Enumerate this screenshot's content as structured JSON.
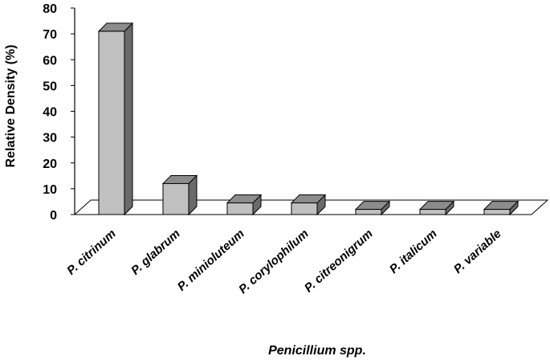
{
  "chart_data": {
    "type": "bar",
    "categories": [
      "P. citrinum",
      "P. glabrum",
      "P. minioluteum",
      "P. corylophilum",
      "P. citreonigrum",
      "P. italicum",
      "P. variable"
    ],
    "values": [
      71,
      12,
      4.5,
      4.5,
      2,
      2,
      2
    ],
    "xlabel": "Penicillium spp.",
    "ylabel": "Relative Density (%)",
    "ylim": [
      0,
      80
    ],
    "yticks": [
      0,
      10,
      20,
      30,
      40,
      50,
      60,
      70,
      80
    ],
    "grid": false,
    "legend": "none",
    "style": "3d-column",
    "colors": {
      "front": "#c0c0c0",
      "top": "#8c8c8c",
      "side": "#6a6a6a",
      "floor": "#ffffff",
      "outline": "#000000"
    }
  }
}
